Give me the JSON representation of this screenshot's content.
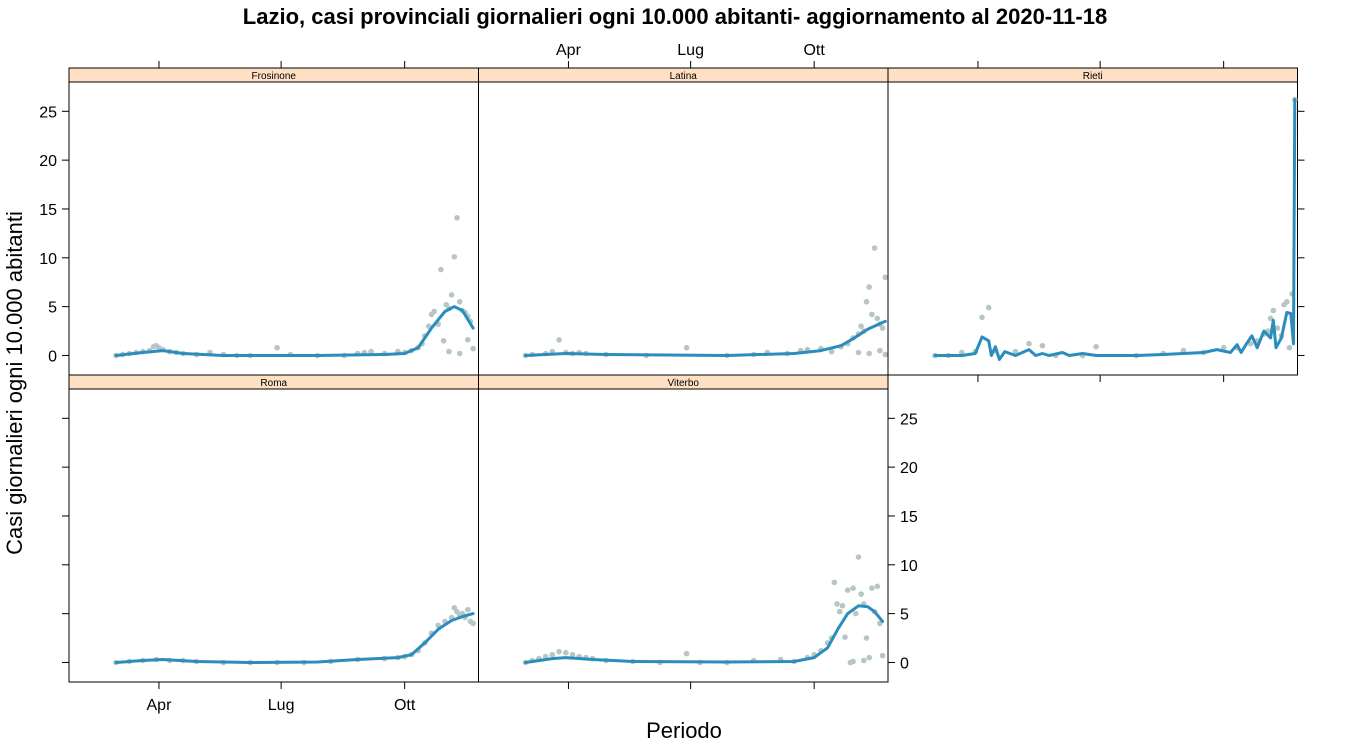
{
  "chart_data": {
    "type": "scatter",
    "title": "Lazio, casi provinciali giornalieri ogni 10.000 abitanti- aggiornamento al 2020-11-18",
    "xlabel": "Periodo",
    "ylabel": "Casi giornalieri ogni 10.000 abitanti",
    "x_ticks": [
      {
        "label": "Apr",
        "x": 32
      },
      {
        "label": "Lug",
        "x": 123
      },
      {
        "label": "Ott",
        "x": 215
      }
    ],
    "xlim": [
      -35,
      270
    ],
    "y_ticks": [
      0,
      5,
      10,
      15,
      20,
      25
    ],
    "ylim": [
      -2,
      28
    ],
    "grid": false,
    "colors": {
      "points": "#b6c6c2",
      "line": "#2b8cbe",
      "strip_bg": "#ffe0c4"
    },
    "panels": [
      {
        "name": "Frosinone",
        "points": [
          [
            0,
            0
          ],
          [
            5,
            0.1
          ],
          [
            10,
            0.2
          ],
          [
            15,
            0.3
          ],
          [
            20,
            0.4
          ],
          [
            25,
            0.5
          ],
          [
            28,
            0.9
          ],
          [
            30,
            1.0
          ],
          [
            32,
            0.8
          ],
          [
            35,
            0.6
          ],
          [
            40,
            0.4
          ],
          [
            45,
            0.3
          ],
          [
            50,
            0.2
          ],
          [
            60,
            0.1
          ],
          [
            70,
            0.3
          ],
          [
            80,
            0.1
          ],
          [
            90,
            0
          ],
          [
            100,
            0
          ],
          [
            120,
            0.8
          ],
          [
            130,
            0.1
          ],
          [
            150,
            0
          ],
          [
            170,
            0
          ],
          [
            180,
            0.2
          ],
          [
            185,
            0.3
          ],
          [
            190,
            0.4
          ],
          [
            200,
            0.2
          ],
          [
            210,
            0.4
          ],
          [
            215,
            0.3
          ],
          [
            220,
            0.5
          ],
          [
            225,
            0.8
          ],
          [
            228,
            1.2
          ],
          [
            230,
            2.0
          ],
          [
            233,
            3.0
          ],
          [
            235,
            4.2
          ],
          [
            237,
            4.5
          ],
          [
            240,
            3.2
          ],
          [
            242,
            8.8
          ],
          [
            244,
            1.5
          ],
          [
            246,
            5.2
          ],
          [
            248,
            4.8
          ],
          [
            250,
            6.2
          ],
          [
            252,
            10.1
          ],
          [
            254,
            14.1
          ],
          [
            256,
            5.5
          ],
          [
            258,
            4.6
          ],
          [
            260,
            4.4
          ],
          [
            262,
            4.0
          ],
          [
            264,
            3.5
          ],
          [
            266,
            0.7
          ],
          [
            248,
            0.4
          ],
          [
            256,
            0.2
          ],
          [
            262,
            1.6
          ]
        ],
        "line": [
          [
            0,
            0
          ],
          [
            20,
            0.3
          ],
          [
            35,
            0.5
          ],
          [
            50,
            0.2
          ],
          [
            80,
            0
          ],
          [
            150,
            0
          ],
          [
            200,
            0.1
          ],
          [
            215,
            0.2
          ],
          [
            225,
            0.8
          ],
          [
            235,
            2.8
          ],
          [
            245,
            4.5
          ],
          [
            252,
            5.0
          ],
          [
            258,
            4.6
          ],
          [
            266,
            2.8
          ]
        ]
      },
      {
        "name": "Latina",
        "points": [
          [
            0,
            0
          ],
          [
            5,
            0.1
          ],
          [
            15,
            0.2
          ],
          [
            20,
            0.4
          ],
          [
            25,
            1.6
          ],
          [
            30,
            0.3
          ],
          [
            35,
            0.2
          ],
          [
            40,
            0.3
          ],
          [
            45,
            0.2
          ],
          [
            60,
            0.1
          ],
          [
            90,
            0
          ],
          [
            120,
            0.8
          ],
          [
            150,
            0
          ],
          [
            170,
            0.1
          ],
          [
            180,
            0.3
          ],
          [
            195,
            0.2
          ],
          [
            205,
            0.5
          ],
          [
            210,
            0.6
          ],
          [
            220,
            0.7
          ],
          [
            228,
            0.4
          ],
          [
            235,
            0.9
          ],
          [
            240,
            1.2
          ],
          [
            244,
            1.8
          ],
          [
            248,
            2.2
          ],
          [
            250,
            3.0
          ],
          [
            252,
            2.5
          ],
          [
            254,
            5.5
          ],
          [
            256,
            7.0
          ],
          [
            258,
            4.2
          ],
          [
            260,
            11.0
          ],
          [
            262,
            3.8
          ],
          [
            264,
            3.2
          ],
          [
            266,
            2.8
          ],
          [
            268,
            8.0
          ],
          [
            248,
            0.3
          ],
          [
            256,
            0.2
          ],
          [
            264,
            0.5
          ],
          [
            268,
            0.1
          ]
        ],
        "line": [
          [
            0,
            0
          ],
          [
            30,
            0.2
          ],
          [
            60,
            0.1
          ],
          [
            150,
            0
          ],
          [
            200,
            0.2
          ],
          [
            220,
            0.5
          ],
          [
            235,
            1.0
          ],
          [
            245,
            1.8
          ],
          [
            255,
            2.7
          ],
          [
            268,
            3.5
          ]
        ]
      },
      {
        "name": "Rieti",
        "points": [
          [
            0,
            0
          ],
          [
            10,
            0
          ],
          [
            20,
            0.3
          ],
          [
            30,
            0.4
          ],
          [
            35,
            3.9
          ],
          [
            40,
            4.9
          ],
          [
            45,
            0.5
          ],
          [
            60,
            0.4
          ],
          [
            70,
            1.2
          ],
          [
            80,
            1.0
          ],
          [
            90,
            0
          ],
          [
            110,
            0
          ],
          [
            120,
            0.9
          ],
          [
            150,
            0
          ],
          [
            170,
            0.2
          ],
          [
            185,
            0.5
          ],
          [
            200,
            0.3
          ],
          [
            215,
            0.8
          ],
          [
            225,
            0.8
          ],
          [
            235,
            1.2
          ],
          [
            240,
            1.5
          ],
          [
            245,
            2.2
          ],
          [
            248,
            2.5
          ],
          [
            250,
            3.8
          ],
          [
            252,
            4.6
          ],
          [
            255,
            2.8
          ],
          [
            258,
            2.0
          ],
          [
            260,
            5.2
          ],
          [
            262,
            5.5
          ],
          [
            264,
            0.8
          ],
          [
            266,
            6.3
          ],
          [
            268,
            26.2
          ]
        ],
        "line": [
          [
            0,
            0
          ],
          [
            20,
            0
          ],
          [
            30,
            0.2
          ],
          [
            35,
            1.9
          ],
          [
            40,
            1.5
          ],
          [
            42,
            0
          ],
          [
            45,
            0.9
          ],
          [
            48,
            -0.4
          ],
          [
            52,
            0.4
          ],
          [
            60,
            0
          ],
          [
            70,
            0.6
          ],
          [
            75,
            0
          ],
          [
            80,
            0.2
          ],
          [
            85,
            0
          ],
          [
            95,
            0.3
          ],
          [
            100,
            0
          ],
          [
            110,
            0.2
          ],
          [
            120,
            0
          ],
          [
            150,
            0
          ],
          [
            170,
            0.1
          ],
          [
            185,
            0.2
          ],
          [
            200,
            0.3
          ],
          [
            210,
            0.6
          ],
          [
            220,
            0.3
          ],
          [
            225,
            1.1
          ],
          [
            228,
            0.3
          ],
          [
            232,
            1.2
          ],
          [
            236,
            2.0
          ],
          [
            240,
            0.8
          ],
          [
            245,
            2.5
          ],
          [
            250,
            1.8
          ],
          [
            252,
            3.6
          ],
          [
            254,
            0.8
          ],
          [
            258,
            1.8
          ],
          [
            262,
            4.4
          ],
          [
            265,
            4.3
          ],
          [
            267,
            1.2
          ],
          [
            268,
            26.2
          ]
        ]
      },
      {
        "name": "Roma",
        "points": [
          [
            0,
            0
          ],
          [
            10,
            0.1
          ],
          [
            20,
            0.2
          ],
          [
            30,
            0.3
          ],
          [
            40,
            0.2
          ],
          [
            50,
            0.2
          ],
          [
            60,
            0.1
          ],
          [
            80,
            0
          ],
          [
            100,
            0
          ],
          [
            120,
            0
          ],
          [
            140,
            0
          ],
          [
            160,
            0.1
          ],
          [
            180,
            0.3
          ],
          [
            200,
            0.4
          ],
          [
            210,
            0.5
          ],
          [
            215,
            0.6
          ],
          [
            220,
            0.8
          ],
          [
            225,
            1.2
          ],
          [
            230,
            2.0
          ],
          [
            235,
            3.0
          ],
          [
            240,
            3.8
          ],
          [
            245,
            4.2
          ],
          [
            250,
            4.6
          ],
          [
            252,
            5.6
          ],
          [
            254,
            5.2
          ],
          [
            256,
            4.8
          ],
          [
            258,
            5.0
          ],
          [
            260,
            4.6
          ],
          [
            262,
            5.4
          ],
          [
            264,
            4.2
          ],
          [
            266,
            4.0
          ]
        ],
        "line": [
          [
            0,
            0
          ],
          [
            20,
            0.2
          ],
          [
            35,
            0.3
          ],
          [
            60,
            0.1
          ],
          [
            100,
            0
          ],
          [
            150,
            0.05
          ],
          [
            180,
            0.3
          ],
          [
            210,
            0.5
          ],
          [
            220,
            0.8
          ],
          [
            230,
            2.0
          ],
          [
            240,
            3.4
          ],
          [
            250,
            4.3
          ],
          [
            258,
            4.7
          ],
          [
            266,
            5.0
          ]
        ]
      },
      {
        "name": "Viterbo",
        "points": [
          [
            0,
            0
          ],
          [
            5,
            0.2
          ],
          [
            10,
            0.4
          ],
          [
            15,
            0.6
          ],
          [
            20,
            0.8
          ],
          [
            25,
            1.1
          ],
          [
            30,
            1.0
          ],
          [
            35,
            0.8
          ],
          [
            40,
            0.6
          ],
          [
            45,
            0.5
          ],
          [
            50,
            0.4
          ],
          [
            60,
            0.2
          ],
          [
            80,
            0.1
          ],
          [
            100,
            0
          ],
          [
            120,
            0.9
          ],
          [
            130,
            0
          ],
          [
            150,
            0
          ],
          [
            170,
            0.2
          ],
          [
            190,
            0.3
          ],
          [
            200,
            0.1
          ],
          [
            210,
            0.5
          ],
          [
            215,
            0.8
          ],
          [
            220,
            1.2
          ],
          [
            225,
            2.0
          ],
          [
            228,
            2.5
          ],
          [
            230,
            8.2
          ],
          [
            232,
            6.0
          ],
          [
            234,
            5.2
          ],
          [
            236,
            5.8
          ],
          [
            238,
            2.6
          ],
          [
            240,
            7.4
          ],
          [
            242,
            0
          ],
          [
            244,
            7.6
          ],
          [
            246,
            5.0
          ],
          [
            248,
            10.8
          ],
          [
            250,
            7.0
          ],
          [
            252,
            6.0
          ],
          [
            254,
            2.5
          ],
          [
            256,
            0.5
          ],
          [
            258,
            7.6
          ],
          [
            260,
            5.2
          ],
          [
            262,
            7.8
          ],
          [
            264,
            4.0
          ],
          [
            266,
            0.7
          ],
          [
            244,
            0.1
          ],
          [
            252,
            0.2
          ]
        ],
        "line": [
          [
            0,
            0
          ],
          [
            20,
            0.4
          ],
          [
            30,
            0.5
          ],
          [
            50,
            0.3
          ],
          [
            80,
            0.1
          ],
          [
            150,
            0.05
          ],
          [
            200,
            0.1
          ],
          [
            215,
            0.5
          ],
          [
            225,
            1.5
          ],
          [
            233,
            3.5
          ],
          [
            240,
            5.0
          ],
          [
            248,
            5.8
          ],
          [
            255,
            5.7
          ],
          [
            260,
            5.2
          ],
          [
            266,
            4.2
          ]
        ]
      }
    ]
  }
}
